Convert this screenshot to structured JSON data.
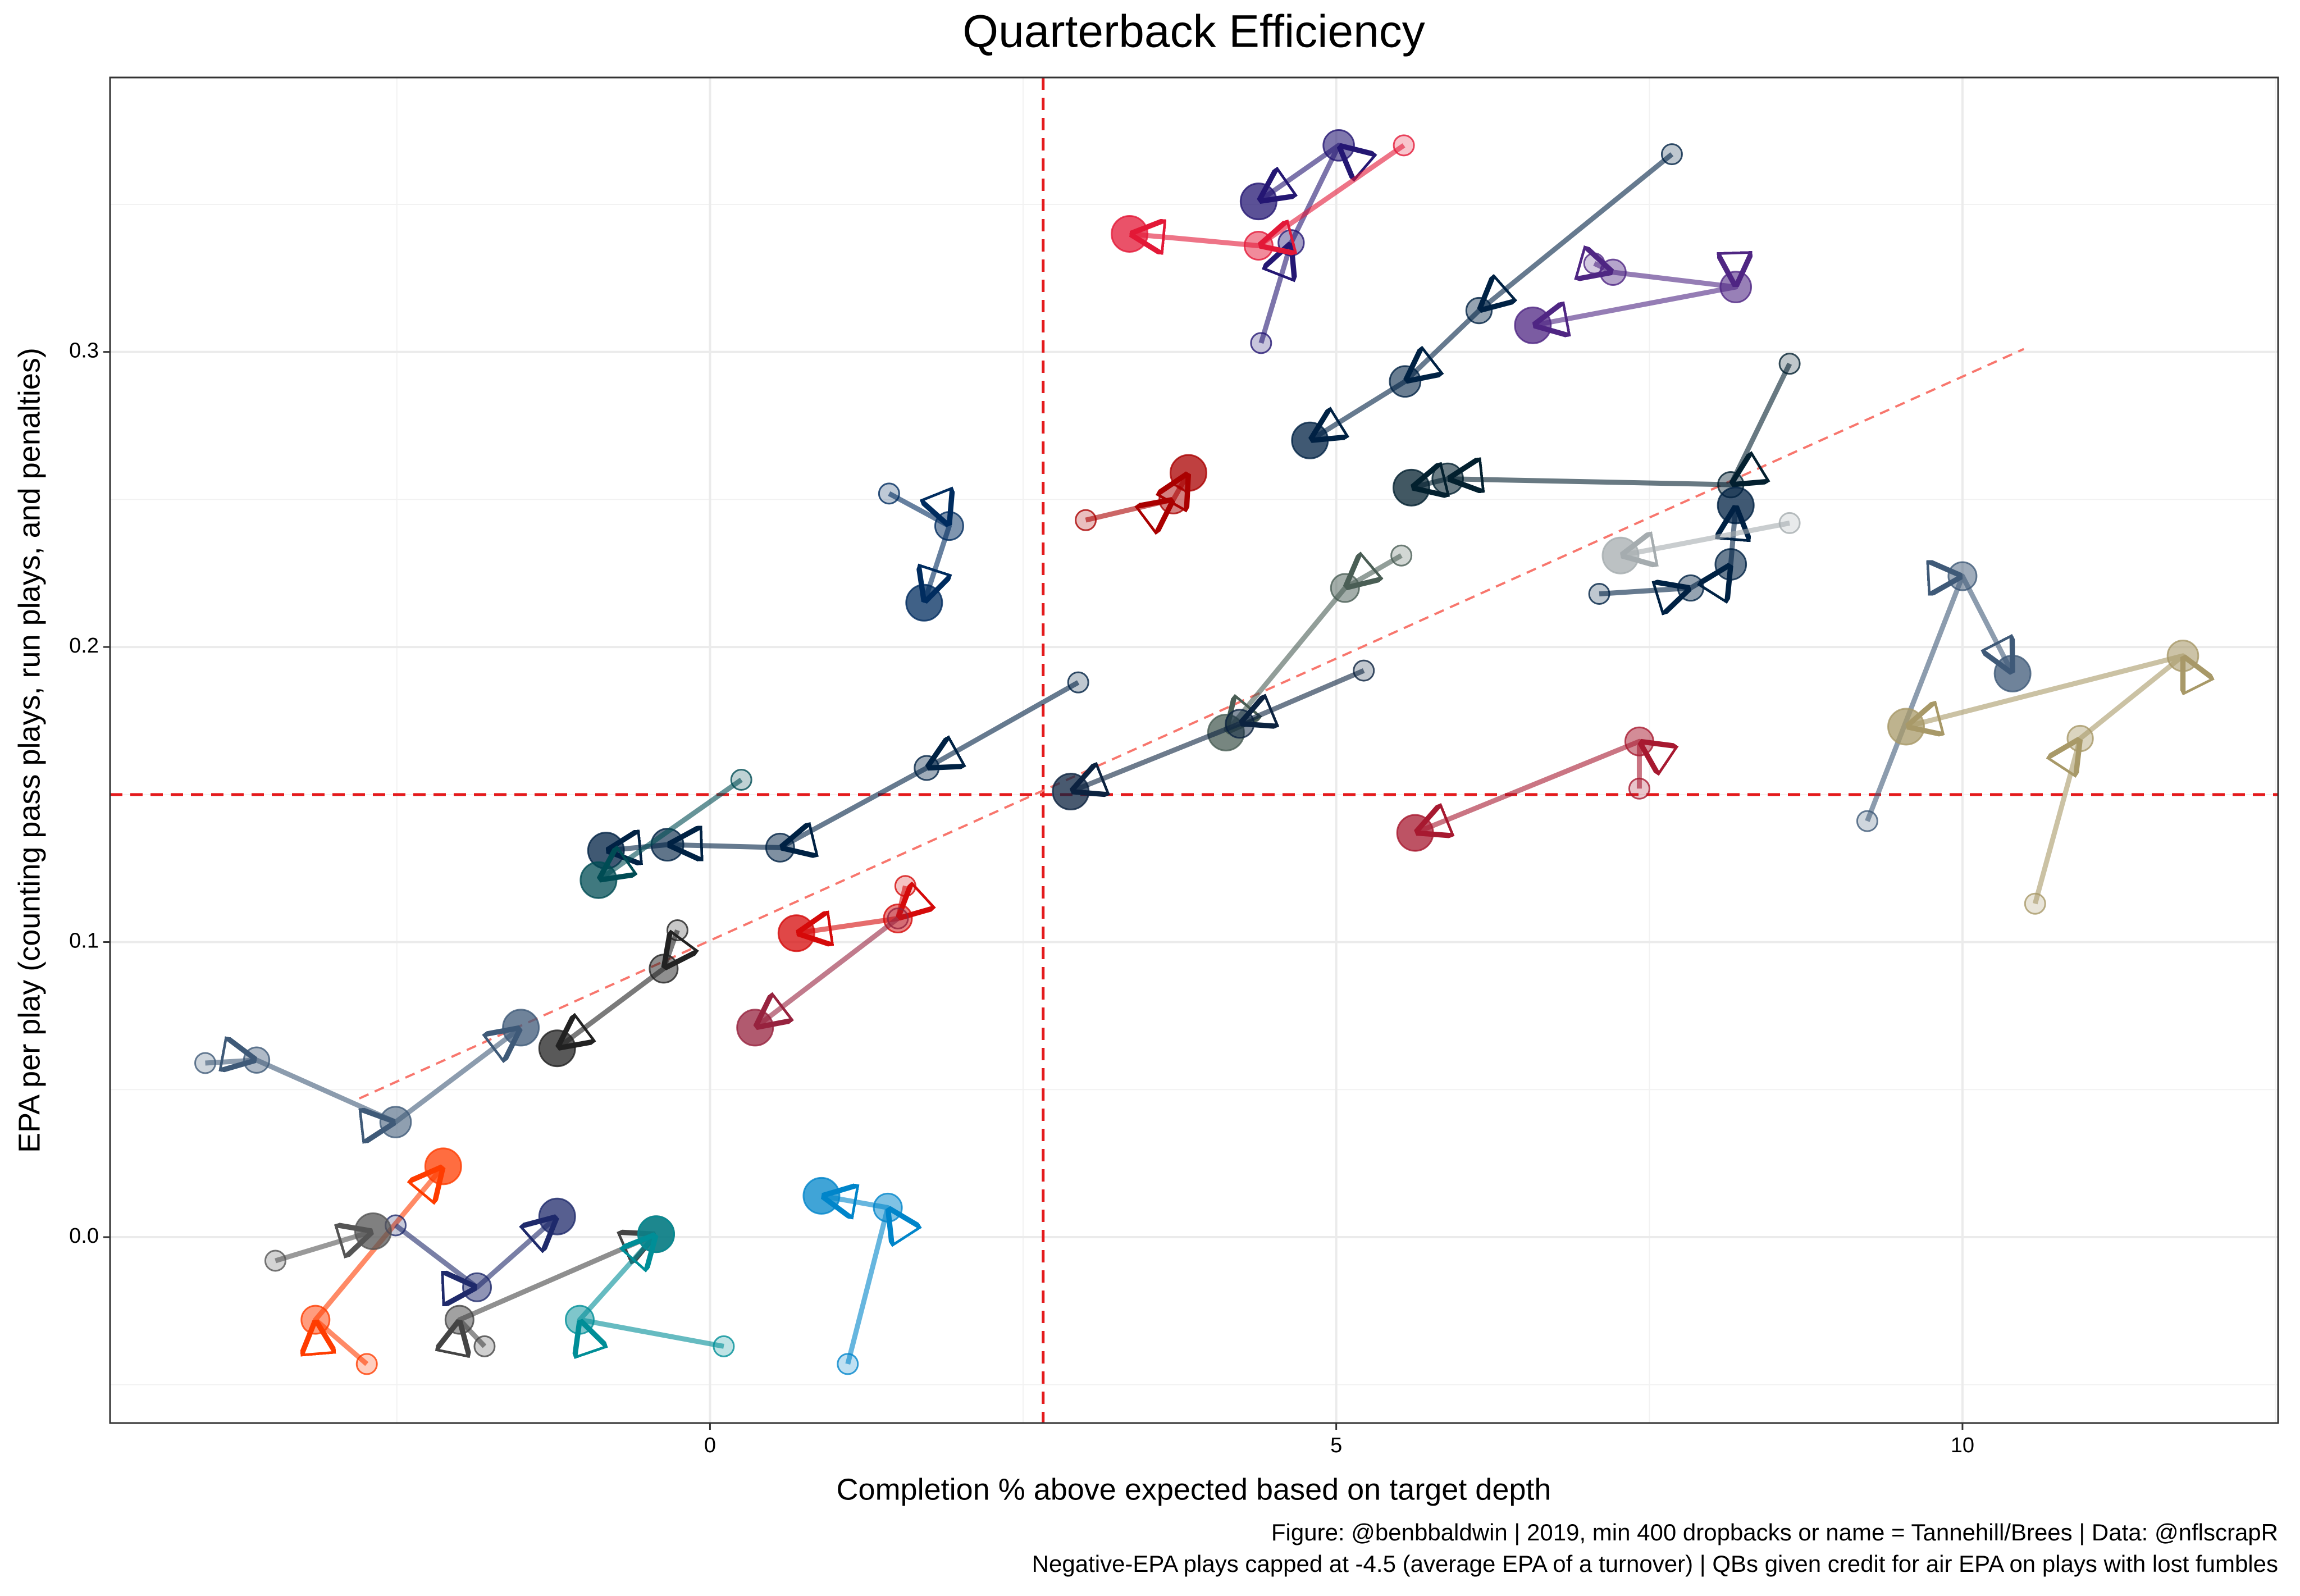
{
  "chart_data": {
    "type": "scatter",
    "title": "Quarterback Efficiency",
    "x_label": "Completion % above expected based on target depth",
    "y_label": "EPA per play (counting pass plays, run plays, and penalties)",
    "caption": [
      "Figure: @benbbaldwin | 2019, min 400 dropbacks or name = Tannehill/Brees | Data: @nflscrapR",
      "Negative-EPA plays capped at -4.5 (average EPA of a turnover) | QBs given credit for air EPA on plays with lost fumbles"
    ],
    "xlim": [
      -4.79,
      12.52
    ],
    "ylim": [
      -0.063,
      0.393
    ],
    "xticks": [
      0,
      5,
      10
    ],
    "yticks": [
      {
        "value": 0,
        "label": "0.0"
      },
      0.1,
      0.2,
      0.3
    ],
    "minor_xticks": [
      -2.5,
      2.5,
      7.5,
      12.5
    ],
    "minor_yticks": [
      -0.05,
      0.05,
      0.15,
      0.25,
      0.35
    ],
    "grid": true,
    "vline": 2.66,
    "hline": 0.15,
    "trend_line": {
      "x": [
        -2.8,
        10.49
      ],
      "values": [
        0.047,
        0.301
      ]
    },
    "series": [
      {
        "color": "#241773",
        "x": [
          4.4,
          4.64,
          5.02,
          4.38
        ],
        "values": [
          0.303,
          0.337,
          0.37,
          0.351
        ]
      },
      {
        "color": "#e31837",
        "x": [
          5.54,
          4.38,
          3.35
        ],
        "values": [
          0.37,
          0.336,
          0.34
        ]
      },
      {
        "color": "#002244",
        "x": [
          7.68,
          6.14,
          5.55,
          4.79
        ],
        "values": [
          0.367,
          0.314,
          0.29,
          0.27
        ]
      },
      {
        "color": "#4f2683",
        "x": [
          7.06,
          7.21,
          8.19,
          6.57
        ],
        "values": [
          0.33,
          0.327,
          0.322,
          0.309
        ]
      },
      {
        "color": "#03202f",
        "x": [
          8.62,
          8.15,
          5.89,
          5.6
        ],
        "values": [
          0.296,
          0.255,
          0.257,
          0.254
        ]
      },
      {
        "color": "#aa0000",
        "x": [
          3.0,
          3.7,
          3.82
        ],
        "values": [
          0.243,
          0.25,
          0.259
        ]
      },
      {
        "color": "#002c5f",
        "x": [
          1.43,
          1.91,
          1.71
        ],
        "values": [
          0.252,
          0.241,
          0.215
        ]
      },
      {
        "color": "#002244",
        "x": [
          7.1,
          7.83,
          8.15,
          8.19
        ],
        "values": [
          0.218,
          0.22,
          0.228,
          0.248
        ]
      },
      {
        "color": "#a5acaf",
        "x": [
          8.62,
          7.27
        ],
        "values": [
          0.242,
          0.231
        ]
      },
      {
        "color": "#3f5a78",
        "x": [
          9.24,
          10.0,
          10.4
        ],
        "values": [
          0.141,
          0.224,
          0.191
        ]
      },
      {
        "color": "#a89968",
        "x": [
          10.58,
          10.94,
          11.76,
          9.55
        ],
        "values": [
          0.113,
          0.169,
          0.197,
          0.173
        ]
      },
      {
        "color": "#4a5e55",
        "x": [
          5.52,
          5.07,
          4.12
        ],
        "values": [
          0.231,
          0.22,
          0.171
        ]
      },
      {
        "color": "#0c2340",
        "x": [
          5.22,
          4.23,
          2.88
        ],
        "values": [
          0.192,
          0.174,
          0.151
        ]
      },
      {
        "color": "#a71930",
        "x": [
          7.42,
          7.42,
          5.63
        ],
        "values": [
          0.152,
          0.168,
          0.137
        ]
      },
      {
        "color": "#002244",
        "x": [
          2.94,
          1.73,
          0.56,
          -0.34,
          -0.83
        ],
        "values": [
          0.188,
          0.159,
          0.132,
          0.133,
          0.131
        ]
      },
      {
        "color": "#d50a0a",
        "x": [
          1.56,
          1.5,
          0.69
        ],
        "values": [
          0.119,
          0.108,
          0.103
        ]
      },
      {
        "color": "#97233f",
        "x": [
          1.5,
          0.36
        ],
        "values": [
          0.108,
          0.071
        ]
      },
      {
        "color": "#004c54",
        "x": [
          0.25,
          -0.89
        ],
        "values": [
          0.155,
          0.121
        ]
      },
      {
        "color": "#222222",
        "x": [
          -0.26,
          -0.37,
          -1.22
        ],
        "values": [
          0.104,
          0.091,
          0.064
        ]
      },
      {
        "color": "#3f5a78",
        "x": [
          -4.03,
          -3.62,
          -2.51,
          -1.51
        ],
        "values": [
          0.059,
          0.06,
          0.039,
          0.071
        ]
      },
      {
        "color": "#ff3c00",
        "x": [
          -2.74,
          -3.15,
          -2.13
        ],
        "values": [
          -0.043,
          -0.028,
          0.024
        ]
      },
      {
        "color": "#1f2a6b",
        "x": [
          -2.51,
          -1.86,
          -1.22
        ],
        "values": [
          0.004,
          -0.017,
          0.007
        ]
      },
      {
        "color": "#444444",
        "x": [
          -1.8,
          -2.0,
          -0.43
        ],
        "values": [
          -0.037,
          -0.028,
          0.001
        ]
      },
      {
        "color": "#008e97",
        "x": [
          0.11,
          -1.04,
          -0.43
        ],
        "values": [
          -0.037,
          -0.028,
          0.001
        ]
      },
      {
        "color": "#0085ca",
        "x": [
          1.1,
          1.42,
          0.89
        ],
        "values": [
          -0.043,
          0.01,
          0.014
        ]
      },
      {
        "color": "#555555",
        "x": [
          -3.47,
          -2.69
        ],
        "values": [
          -0.008,
          0.002
        ]
      }
    ]
  }
}
